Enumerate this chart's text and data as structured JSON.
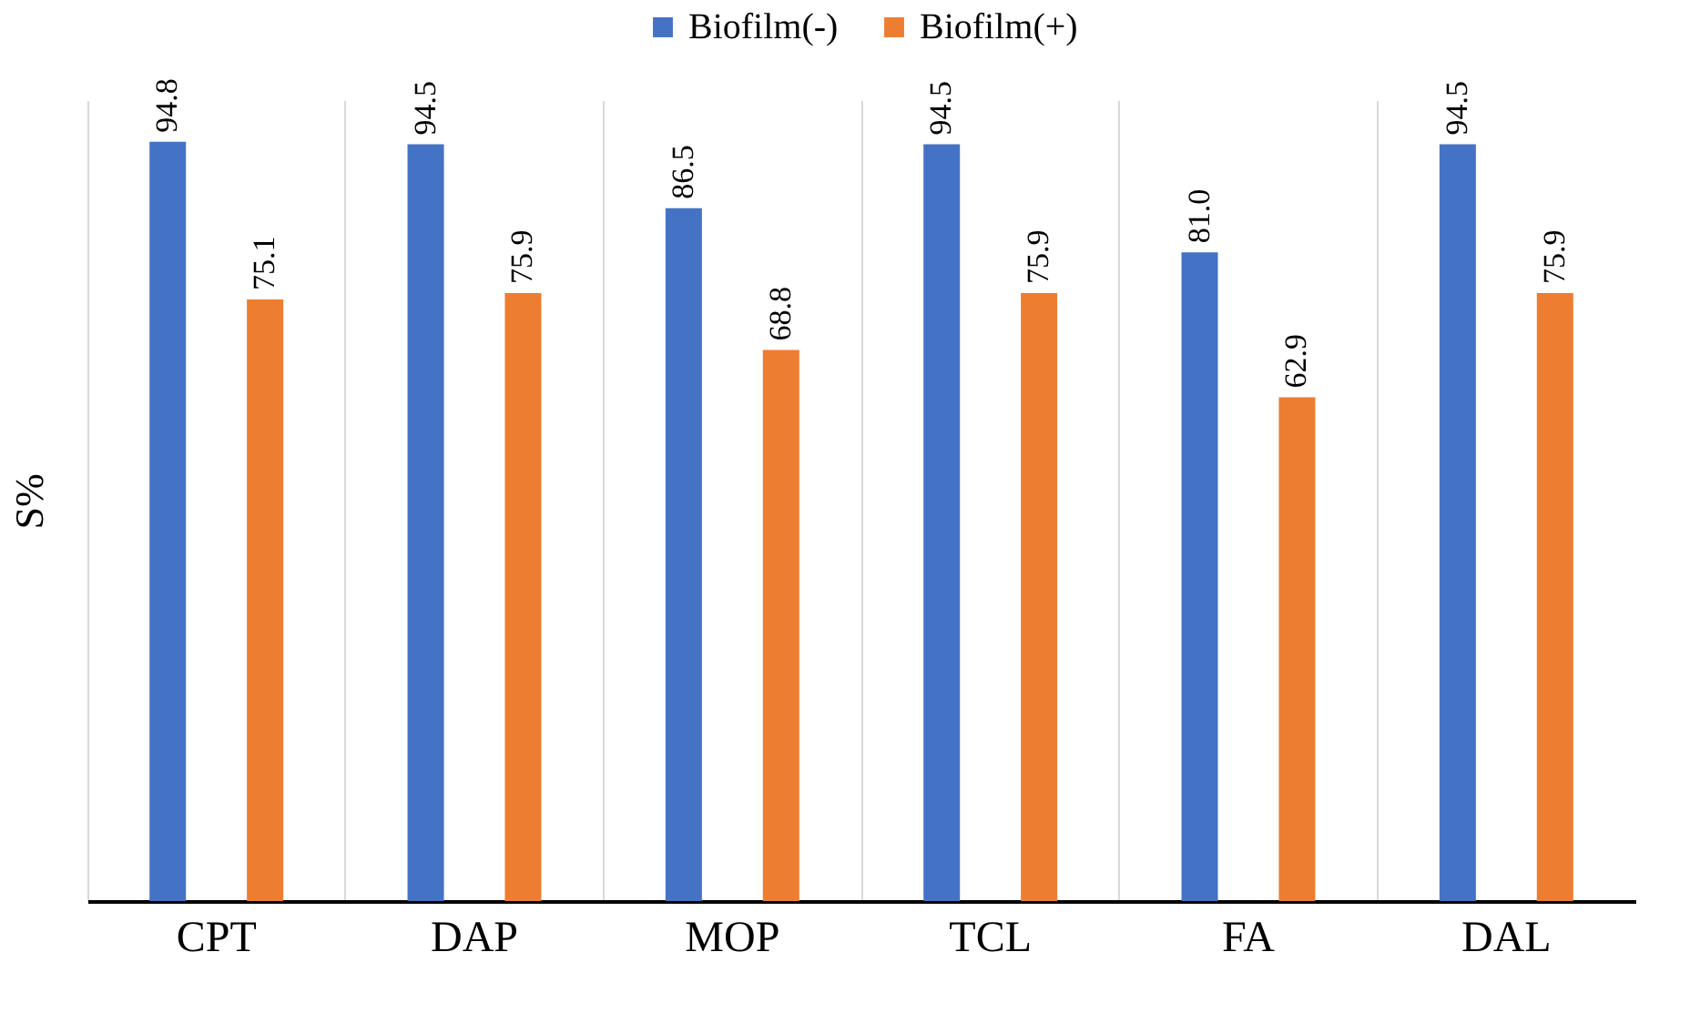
{
  "chart_data": {
    "type": "bar",
    "ylabel": "S%",
    "categories": [
      "CPT",
      "DAP",
      "MOP",
      "TCL",
      "FA",
      "DAL"
    ],
    "series": [
      {
        "name": "Biofilm(-)",
        "color": "#4472c4",
        "values": [
          94.8,
          94.5,
          86.5,
          94.5,
          81.0,
          94.5
        ],
        "value_labels": [
          "94.8",
          "94.5",
          "86.5",
          "94.5",
          "81.0",
          "94.5"
        ]
      },
      {
        "name": "Biofilm(+)",
        "color": "#ed7d31",
        "values": [
          75.1,
          75.9,
          68.8,
          75.9,
          62.9,
          75.9
        ],
        "value_labels": [
          "75.1",
          "75.9",
          "68.8",
          "75.9",
          "62.9",
          "75.9"
        ]
      }
    ],
    "legend": "top",
    "grid": "x",
    "tick_labels": "x"
  }
}
